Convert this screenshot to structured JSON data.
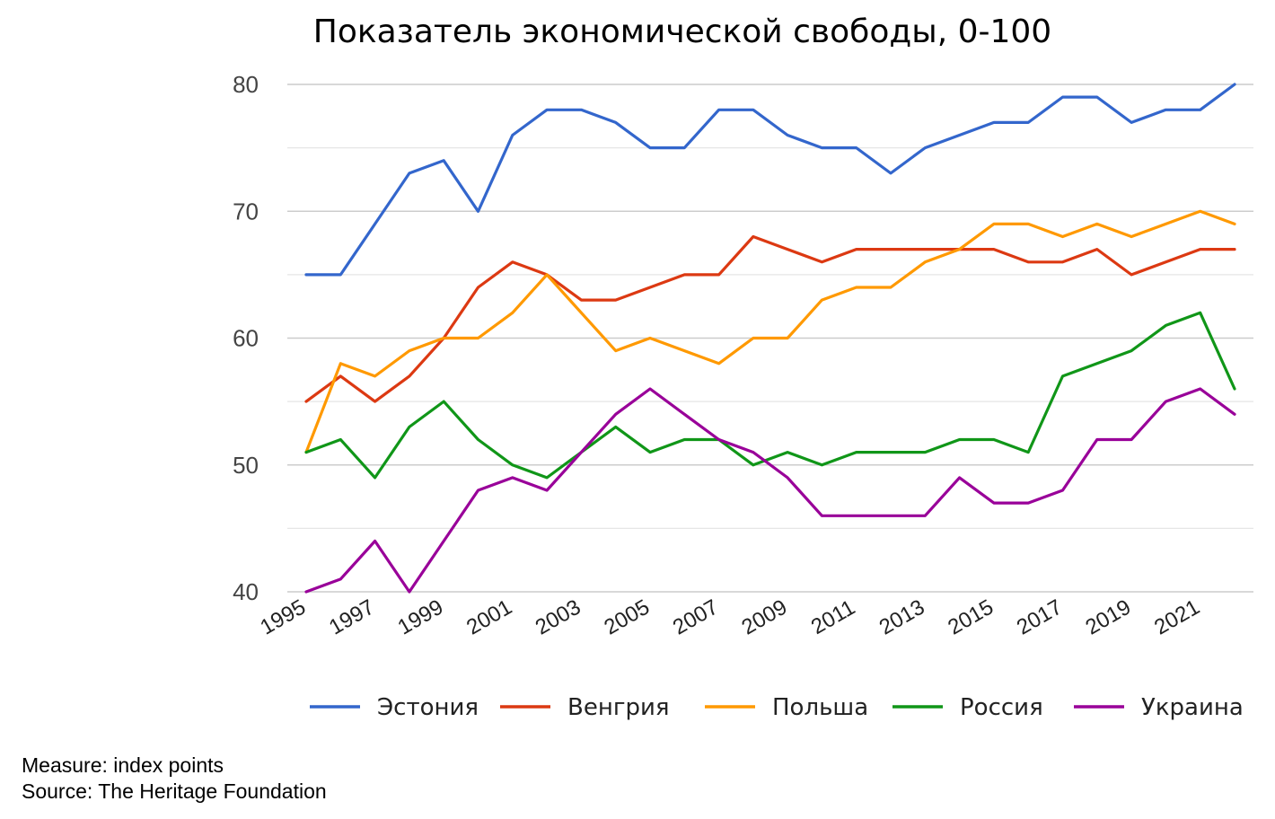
{
  "chart_data": {
    "type": "line",
    "title": "Показатель экономической свободы, 0-100",
    "xlabel": "",
    "ylabel": "",
    "ylim": [
      40,
      80
    ],
    "yticks": [
      40,
      50,
      60,
      70,
      80
    ],
    "grid": true,
    "legend_position": "bottom",
    "x": [
      1995,
      1996,
      1997,
      1998,
      1999,
      2000,
      2001,
      2002,
      2003,
      2004,
      2005,
      2006,
      2007,
      2008,
      2009,
      2010,
      2011,
      2012,
      2013,
      2014,
      2015,
      2016,
      2017,
      2018,
      2019,
      2020,
      2021,
      2022
    ],
    "xtick_labels": [
      "1995",
      "1997",
      "1999",
      "2001",
      "2003",
      "2005",
      "2007",
      "2009",
      "2011",
      "2013",
      "2015",
      "2017",
      "2019",
      "2021"
    ],
    "series": [
      {
        "name": "Эстония",
        "color": "#3366cc",
        "values": [
          65,
          65,
          69,
          73,
          74,
          70,
          76,
          78,
          78,
          77,
          75,
          75,
          78,
          78,
          76,
          75,
          75,
          73,
          75,
          76,
          77,
          77,
          79,
          79,
          77,
          78,
          78,
          80
        ]
      },
      {
        "name": "Венгрия",
        "color": "#dc3912",
        "values": [
          55,
          57,
          55,
          57,
          60,
          64,
          66,
          65,
          63,
          63,
          64,
          65,
          65,
          68,
          67,
          66,
          67,
          67,
          67,
          67,
          67,
          66,
          66,
          67,
          65,
          66,
          67,
          67
        ]
      },
      {
        "name": "Польша",
        "color": "#ff9900",
        "values": [
          51,
          58,
          57,
          59,
          60,
          60,
          62,
          65,
          62,
          59,
          60,
          59,
          58,
          60,
          60,
          63,
          64,
          64,
          66,
          67,
          69,
          69,
          68,
          69,
          68,
          69,
          70,
          69
        ]
      },
      {
        "name": "Россия",
        "color": "#109618",
        "values": [
          51,
          52,
          49,
          53,
          55,
          52,
          50,
          49,
          51,
          53,
          51,
          52,
          52,
          50,
          51,
          50,
          51,
          51,
          51,
          52,
          52,
          51,
          57,
          58,
          59,
          61,
          62,
          56
        ]
      },
      {
        "name": "Украина",
        "color": "#990099",
        "values": [
          40,
          41,
          44,
          40,
          44,
          48,
          49,
          48,
          51,
          54,
          56,
          54,
          52,
          51,
          49,
          46,
          46,
          46,
          46,
          49,
          47,
          47,
          48,
          52,
          52,
          55,
          56,
          54
        ]
      }
    ]
  },
  "footer": {
    "measure": "Measure: index points",
    "source": "Source: The Heritage Foundation"
  }
}
